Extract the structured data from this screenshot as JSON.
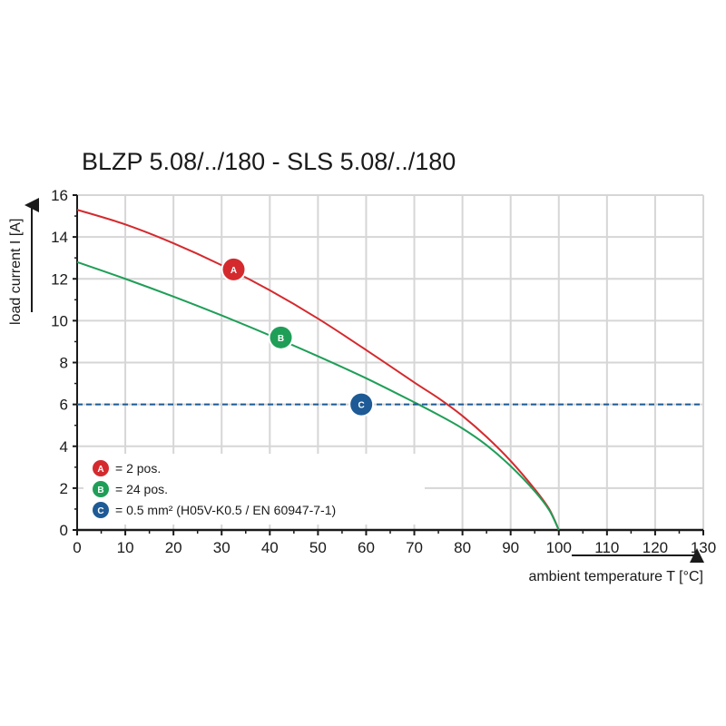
{
  "chart_data": {
    "type": "line",
    "title": "BLZP 5.08/../180 - SLS 5.08/../180",
    "xlabel": "ambient temperature T [°C]",
    "ylabel": "load current I [A]",
    "xlim": [
      0,
      130
    ],
    "ylim": [
      0,
      16
    ],
    "x_ticks": [
      "0",
      "10",
      "20",
      "30",
      "40",
      "50",
      "60",
      "70",
      "80",
      "90",
      "100",
      "110",
      "120",
      "130"
    ],
    "y_ticks": [
      "0",
      "2",
      "4",
      "6",
      "8",
      "10",
      "12",
      "14",
      "16"
    ],
    "grid": true,
    "series": [
      {
        "id": "A",
        "badge": "A",
        "legend": "= 2 pos.",
        "color": "#d42a2e",
        "style": "solid",
        "marker_at": [
          32.5,
          12.45
        ],
        "points": [
          [
            0,
            15.3
          ],
          [
            10,
            14.6
          ],
          [
            20,
            13.7
          ],
          [
            30,
            12.65
          ],
          [
            40,
            11.45
          ],
          [
            50,
            10.1
          ],
          [
            60,
            8.6
          ],
          [
            70,
            7.05
          ],
          [
            75,
            6.3
          ],
          [
            80,
            5.45
          ],
          [
            85,
            4.45
          ],
          [
            90,
            3.3
          ],
          [
            95,
            1.95
          ],
          [
            98,
            1.0
          ],
          [
            100,
            0
          ]
        ]
      },
      {
        "id": "B",
        "badge": "B",
        "legend": "= 24 pos.",
        "color": "#1f9e58",
        "style": "solid",
        "marker_at": [
          42.3,
          9.2
        ],
        "points": [
          [
            0,
            12.8
          ],
          [
            10,
            12.0
          ],
          [
            20,
            11.15
          ],
          [
            30,
            10.25
          ],
          [
            40,
            9.3
          ],
          [
            50,
            8.3
          ],
          [
            60,
            7.25
          ],
          [
            70,
            6.1
          ],
          [
            75,
            5.5
          ],
          [
            80,
            4.85
          ],
          [
            85,
            4.05
          ],
          [
            90,
            3.05
          ],
          [
            95,
            1.85
          ],
          [
            98,
            0.95
          ],
          [
            100,
            0
          ]
        ]
      },
      {
        "id": "C",
        "badge": "C",
        "legend": "= 0.5 mm² (H05V-K0.5 / EN 60947-7-1)",
        "color": "#1d5a96",
        "style": "dashed",
        "marker_at": [
          59,
          6.0
        ],
        "points": [
          [
            0,
            6
          ],
          [
            130,
            6
          ]
        ]
      }
    ],
    "legend_placement": "bottom-left"
  }
}
